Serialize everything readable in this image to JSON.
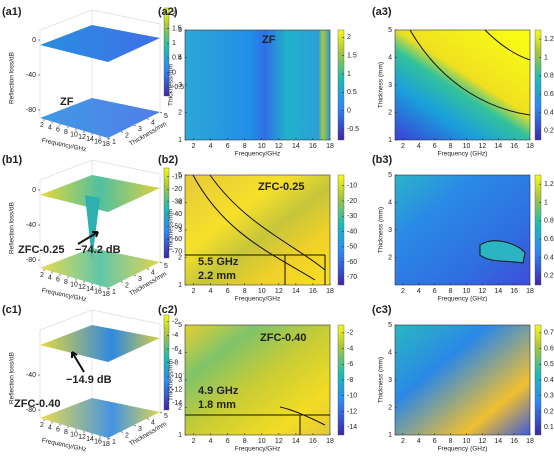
{
  "panels": [
    {
      "label": "(a1)",
      "type": "surface3d",
      "zlabel": "Reflection loss/dB",
      "xlabel": "Frequency/GHz",
      "ylabel": "Thickness/mm",
      "xlim": [
        1,
        18
      ],
      "xticks": [
        2,
        4,
        6,
        8,
        10,
        12,
        14,
        16,
        18
      ],
      "ylim": [
        1,
        5
      ],
      "yticks": [
        1,
        2,
        3,
        4,
        5
      ],
      "zlim": [
        -80,
        0
      ],
      "zticks": [
        0,
        -40,
        -80
      ],
      "clim": [
        -0.8,
        2.2
      ],
      "cticks": [
        2,
        1.5,
        1,
        0.5,
        0,
        -0.5
      ],
      "annotations": [
        "ZF"
      ]
    },
    {
      "label": "(a2)",
      "type": "heatmap",
      "xlabel": "Frequency/GHz",
      "ylabel": "Thickness/mm",
      "xlim": [
        1,
        18
      ],
      "xticks": [
        2,
        4,
        6,
        8,
        10,
        12,
        14,
        16,
        18
      ],
      "ylim": [
        1,
        5
      ],
      "yticks": [
        1,
        2,
        3,
        4,
        5
      ],
      "clim": [
        -0.8,
        2.2
      ],
      "cticks": [
        2,
        1.5,
        1,
        0.5,
        0,
        -0.5
      ],
      "annotations": [
        "ZF"
      ]
    },
    {
      "label": "(a3)",
      "type": "heatmap",
      "xlabel": "Frequency (GHz)",
      "ylabel": "Thickness (mm)",
      "xlim": [
        1,
        18
      ],
      "xticks": [
        2,
        4,
        6,
        8,
        10,
        12,
        14,
        16,
        18
      ],
      "ylim": [
        1,
        5
      ],
      "yticks": [
        1,
        2,
        3,
        4,
        5
      ],
      "clim": [
        0.1,
        1.3
      ],
      "cticks": [
        1.2,
        1,
        0.8,
        0.6,
        0.4,
        0.2
      ],
      "annotations": []
    },
    {
      "label": "(b1)",
      "type": "surface3d",
      "zlabel": "Reflection loss/dB",
      "xlabel": "Frequency/GHz",
      "ylabel": "Thickness/mm",
      "xlim": [
        1,
        18
      ],
      "xticks": [
        2,
        4,
        6,
        8,
        10,
        12,
        14,
        16,
        18
      ],
      "ylim": [
        1,
        5
      ],
      "yticks": [
        1,
        2,
        3,
        4,
        5
      ],
      "zlim": [
        -80,
        0
      ],
      "zticks": [
        0,
        -40,
        -80
      ],
      "clim": [
        -75,
        -3
      ],
      "cticks": [
        -10,
        -20,
        -30,
        -40,
        -50,
        -60,
        -70
      ],
      "annotations": [
        "ZFC-0.25",
        "−74.2 dB"
      ]
    },
    {
      "label": "(b2)",
      "type": "heatmap",
      "xlabel": "Frequency/GHz",
      "ylabel": "Thickness/mm",
      "xlim": [
        1,
        18
      ],
      "xticks": [
        2,
        4,
        6,
        8,
        10,
        12,
        14,
        16,
        18
      ],
      "ylim": [
        1,
        5
      ],
      "yticks": [
        1,
        2,
        3,
        4,
        5
      ],
      "clim": [
        -75,
        -3
      ],
      "cticks": [
        -10,
        -20,
        -30,
        -40,
        -50,
        -60,
        -70
      ],
      "annotations": [
        "ZFC-0.25",
        "5.5 GHz",
        "2.2 mm"
      ]
    },
    {
      "label": "(b3)",
      "type": "heatmap",
      "xlabel": "Frequency (GHz)",
      "ylabel": "Thickness (mm)",
      "xlim": [
        1,
        18
      ],
      "xticks": [
        2,
        4,
        6,
        8,
        10,
        12,
        14,
        16,
        18
      ],
      "ylim": [
        1,
        5
      ],
      "yticks": [
        2,
        3,
        4,
        5
      ],
      "clim": [
        0.1,
        1.3
      ],
      "cticks": [
        1.2,
        1,
        0.8,
        0.6,
        0.4,
        0.2
      ],
      "annotations": []
    },
    {
      "label": "(c1)",
      "type": "surface3d",
      "zlabel": "Reflection loss/dB",
      "xlabel": "Frequency/GHz",
      "ylabel": "Thickness/mm",
      "xlim": [
        1,
        18
      ],
      "xticks": [
        2,
        4,
        6,
        8,
        10,
        12,
        14,
        16,
        18
      ],
      "ylim": [
        1,
        5
      ],
      "yticks": [
        1,
        2,
        3,
        4,
        5
      ],
      "zlim": [
        -80,
        0
      ],
      "zticks": [
        -40,
        -80
      ],
      "clim": [
        -15,
        -1
      ],
      "cticks": [
        -2,
        -4,
        -6,
        -8,
        -10,
        -12,
        -14
      ],
      "annotations": [
        "−14.9 dB",
        "ZFC-0.40"
      ]
    },
    {
      "label": "(c2)",
      "type": "heatmap",
      "xlabel": "Frequency/GHz",
      "ylabel": "Thickness/mm",
      "xlim": [
        1,
        18
      ],
      "xticks": [
        2,
        4,
        6,
        8,
        10,
        12,
        14,
        16,
        18
      ],
      "ylim": [
        1,
        5
      ],
      "yticks": [
        1,
        2,
        3,
        4,
        5
      ],
      "clim": [
        -15,
        -1
      ],
      "cticks": [
        -2,
        -4,
        -6,
        -8,
        -10,
        -12,
        -14
      ],
      "annotations": [
        "ZFC-0.40",
        "4.9 GHz",
        "1.8 mm"
      ]
    },
    {
      "label": "(c3)",
      "type": "heatmap",
      "xlabel": "Frequency (GHz)",
      "ylabel": "Thickness (mm)",
      "xlim": [
        1,
        18
      ],
      "xticks": [
        2,
        4,
        6,
        8,
        10,
        12,
        14,
        16,
        18
      ],
      "ylim": [
        1,
        5
      ],
      "yticks": [
        1,
        2,
        3,
        4,
        5
      ],
      "clim": [
        0.05,
        0.75
      ],
      "cticks": [
        0.7,
        0.6,
        0.5,
        0.4,
        0.3,
        0.2,
        0.1
      ],
      "annotations": []
    }
  ]
}
